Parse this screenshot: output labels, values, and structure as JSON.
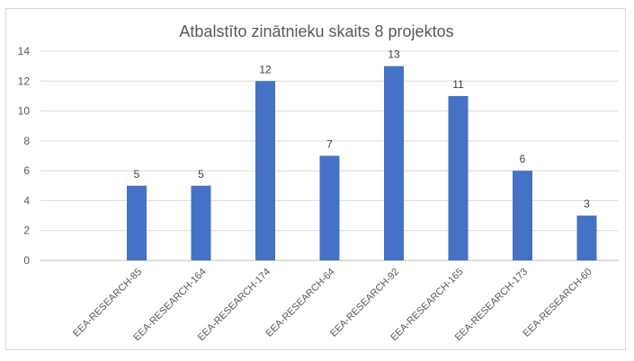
{
  "chart_data": {
    "type": "bar",
    "title": "Atbalstīto zinātnieku skaits 8 projektos",
    "categories": [
      "EEA-RESEARCH-85",
      "EEA-RESEARCH-164",
      "EEA-RESEARCH-174",
      "EEA-RESEARCH-64",
      "EEA-RESEARCH-92",
      "EEA-RESEARCH-165",
      "EEA-RESEARCH-173",
      "EEA-RESEARCH-60"
    ],
    "values": [
      5,
      5,
      12,
      7,
      13,
      11,
      6,
      3
    ],
    "ylim": [
      0,
      14
    ],
    "yticks": [
      0,
      2,
      4,
      6,
      8,
      10,
      12,
      14
    ],
    "xlabel": "",
    "ylabel": "",
    "grid": true,
    "legend": "none",
    "bar_color": "#4472c4",
    "data_labels": true
  }
}
